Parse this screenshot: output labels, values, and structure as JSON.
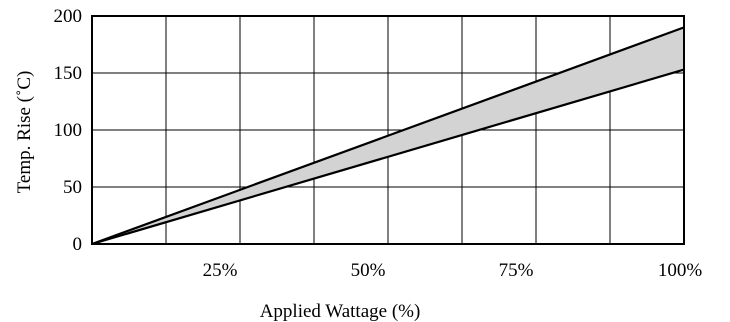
{
  "chart_data": {
    "type": "area",
    "title": "",
    "xlabel": "Applied Wattage  (%)",
    "ylabel": "Temp. Rise (˚C)",
    "xlim": [
      0,
      100
    ],
    "ylim": [
      0,
      200
    ],
    "x_ticks": [
      25,
      50,
      75,
      100
    ],
    "x_tick_labels": [
      "25%",
      "50%",
      "75%",
      "100%"
    ],
    "y_ticks": [
      0,
      50,
      100,
      150,
      200
    ],
    "y_tick_labels": [
      "0",
      "50",
      "100",
      "150",
      "200"
    ],
    "grid": true,
    "x_grid_positions": [
      12.5,
      25,
      37.5,
      50,
      62.5,
      75,
      87.5
    ],
    "y_grid_positions": [
      50,
      100,
      150
    ],
    "series": [
      {
        "role": "upper",
        "x": [
          0,
          100
        ],
        "y": [
          0,
          190
        ]
      },
      {
        "role": "lower",
        "x": [
          0,
          100
        ],
        "y": [
          0,
          153
        ]
      }
    ],
    "band_color": "#d3d3d3",
    "line_color": "#000000"
  }
}
